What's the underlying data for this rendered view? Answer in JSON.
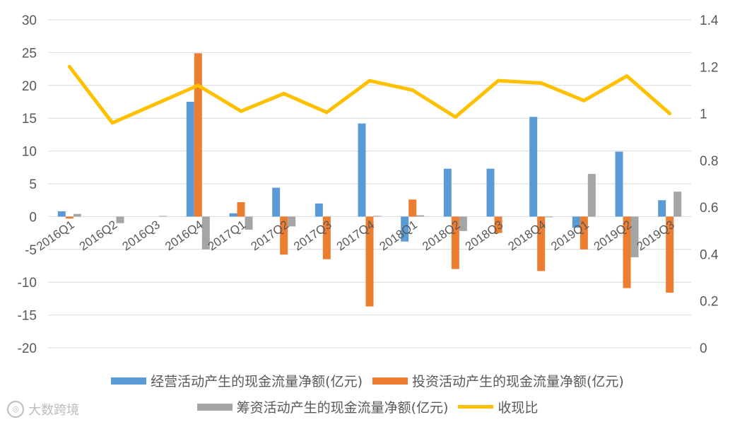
{
  "chart_data": {
    "type": "bar",
    "categories": [
      "2016Q1",
      "2016Q2",
      "2016Q3",
      "2016Q4",
      "2017Q1",
      "2017Q2",
      "2017Q3",
      "2017Q4",
      "2018Q1",
      "2018Q2",
      "2018Q3",
      "2018Q4",
      "2019Q1",
      "2019Q2",
      "2019Q3"
    ],
    "series": [
      {
        "name": "经营活动产生的现金流量净额(亿元)",
        "type": "bar",
        "axis": "left",
        "color": "#5B9BD5",
        "values": [
          0.8,
          0,
          0,
          17.5,
          0.5,
          4.4,
          2.0,
          14.2,
          -3.8,
          7.3,
          7.3,
          15.2,
          -1.7,
          9.9,
          2.5
        ]
      },
      {
        "name": "投资活动产生的现金流量净额(亿元)",
        "type": "bar",
        "axis": "left",
        "color": "#ED7D31",
        "values": [
          -0.3,
          0,
          0,
          24.9,
          2.2,
          -5.8,
          -6.5,
          -13.7,
          2.6,
          -8.0,
          -2.5,
          -8.3,
          -5.0,
          -10.9,
          -11.6
        ]
      },
      {
        "name": "筹资活动产生的现金流量净额(亿元)",
        "type": "bar",
        "axis": "left",
        "color": "#A5A5A5",
        "values": [
          0.4,
          -1.0,
          0.1,
          -5.0,
          -2.0,
          -1.5,
          0,
          0.1,
          0.2,
          -2.2,
          0,
          -0.1,
          6.5,
          -6.2,
          3.8
        ]
      },
      {
        "name": "收现比",
        "type": "line",
        "axis": "right",
        "color": "#FFC000",
        "values": [
          1.2,
          0.96,
          1.04,
          1.12,
          1.01,
          1.085,
          1.005,
          1.14,
          1.1,
          0.985,
          1.14,
          1.13,
          1.055,
          1.16,
          1.0
        ]
      }
    ],
    "left_axis": {
      "min": -20,
      "max": 30,
      "step": 5,
      "ticks": [
        "30",
        "25",
        "20",
        "15",
        "10",
        "5",
        "0",
        "-5",
        "-10",
        "-15",
        "-20"
      ]
    },
    "right_axis": {
      "min": 0,
      "max": 1.4,
      "step": 0.2,
      "ticks": [
        "1.4",
        "1.2",
        "1",
        "0.8",
        "0.6",
        "0.4",
        "0.2",
        "0"
      ]
    },
    "grid": true,
    "legend_position": "bottom"
  },
  "legend": {
    "item1": "经营活动产生的现金流量净额(亿元)",
    "item2": "投资活动产生的现金流量净额(亿元)",
    "item3": "筹资活动产生的现金流量净额(亿元)",
    "item4": "收现比"
  },
  "watermark": {
    "text": "大数跨境"
  }
}
